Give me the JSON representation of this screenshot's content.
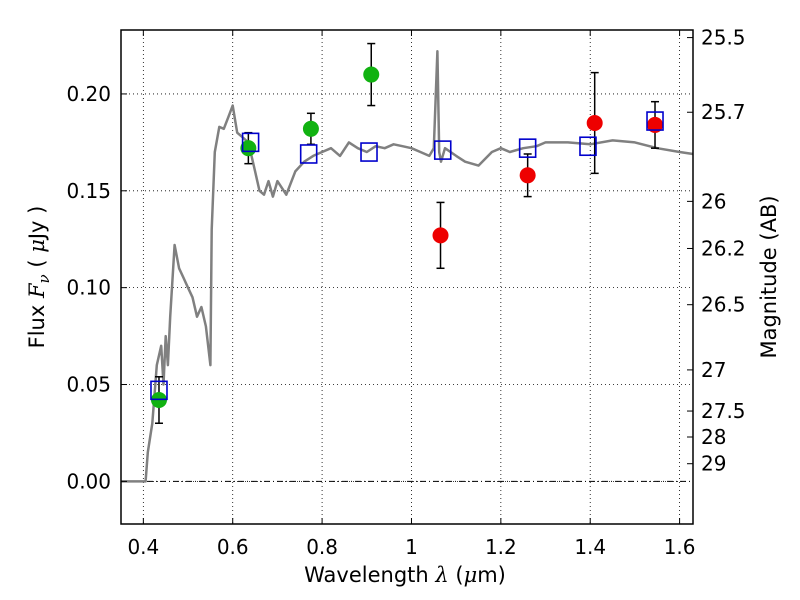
{
  "chart_data": {
    "type": "scatter",
    "title": "",
    "xlabel": "Wavelength  λ (μm)",
    "ylabel": "Flux  F_ν  ( μJy )",
    "y2label": "Magnitude (AB)",
    "xlim": [
      0.35,
      1.63
    ],
    "ylim": [
      -0.022,
      0.233
    ],
    "x_ticks": [
      0.4,
      0.6,
      0.8,
      1.0,
      1.2,
      1.4,
      1.6
    ],
    "x_tick_labels": [
      "0.4",
      "0.6",
      "0.8",
      "1",
      "1.2",
      "1.4",
      "1.6"
    ],
    "y_ticks": [
      0.0,
      0.05,
      0.1,
      0.15,
      0.2
    ],
    "y_tick_labels": [
      "0.00",
      "0.05",
      "0.10",
      "0.15",
      "0.20"
    ],
    "mag_ticks": [
      {
        "label": "25.5",
        "mag": 25.5
      },
      {
        "label": "25.7",
        "mag": 25.7
      },
      {
        "label": "26",
        "mag": 26.0
      },
      {
        "label": "26.2",
        "mag": 26.2
      },
      {
        "label": "26.5",
        "mag": 26.5
      },
      {
        "label": "27",
        "mag": 27.0
      },
      {
        "label": "27.5",
        "mag": 27.5
      },
      {
        "label": "28",
        "mag": 28.0
      },
      {
        "label": "29",
        "mag": 29.0
      }
    ],
    "grid": true,
    "colors": {
      "model": "#808080",
      "green": "#11b211",
      "red": "#ee0000",
      "square": "#0000cc",
      "errorbar": "#000000"
    },
    "series": [
      {
        "kind": "model-spectrum",
        "x": [
          0.35,
          0.405,
          0.41,
          0.42,
          0.43,
          0.44,
          0.445,
          0.45,
          0.455,
          0.46,
          0.47,
          0.48,
          0.49,
          0.5,
          0.51,
          0.52,
          0.53,
          0.54,
          0.55,
          0.553,
          0.56,
          0.57,
          0.58,
          0.59,
          0.6,
          0.61,
          0.62,
          0.63,
          0.64,
          0.65,
          0.66,
          0.67,
          0.68,
          0.69,
          0.7,
          0.72,
          0.74,
          0.76,
          0.78,
          0.8,
          0.82,
          0.84,
          0.86,
          0.88,
          0.9,
          0.92,
          0.94,
          0.96,
          0.98,
          1.0,
          1.02,
          1.04,
          1.05,
          1.058,
          1.062,
          1.066,
          1.075,
          1.1,
          1.12,
          1.15,
          1.18,
          1.2,
          1.22,
          1.25,
          1.28,
          1.3,
          1.35,
          1.4,
          1.45,
          1.5,
          1.55,
          1.6,
          1.63
        ],
        "y": [
          0.0,
          0.0,
          0.015,
          0.03,
          0.06,
          0.07,
          0.05,
          0.075,
          0.06,
          0.085,
          0.122,
          0.11,
          0.105,
          0.1,
          0.095,
          0.085,
          0.09,
          0.08,
          0.06,
          0.13,
          0.17,
          0.183,
          0.182,
          0.188,
          0.194,
          0.18,
          0.178,
          0.176,
          0.17,
          0.16,
          0.15,
          0.148,
          0.155,
          0.147,
          0.155,
          0.148,
          0.16,
          0.165,
          0.168,
          0.17,
          0.172,
          0.168,
          0.175,
          0.172,
          0.17,
          0.173,
          0.172,
          0.174,
          0.173,
          0.172,
          0.17,
          0.168,
          0.172,
          0.222,
          0.17,
          0.165,
          0.172,
          0.168,
          0.165,
          0.163,
          0.17,
          0.172,
          0.17,
          0.172,
          0.173,
          0.175,
          0.175,
          0.174,
          0.176,
          0.175,
          0.172,
          0.17,
          0.169
        ]
      },
      {
        "kind": "green-points",
        "x": [
          0.435,
          0.635,
          0.775,
          0.91
        ],
        "y": [
          0.042,
          0.172,
          0.182,
          0.21
        ],
        "yerr": [
          0.012,
          0.008,
          0.008,
          0.016
        ]
      },
      {
        "kind": "red-points",
        "x": [
          1.065,
          1.26,
          1.41,
          1.545
        ],
        "y": [
          0.127,
          0.158,
          0.185,
          0.184
        ],
        "yerr": [
          0.017,
          0.011,
          0.026,
          0.012
        ]
      },
      {
        "kind": "model-squares",
        "x": [
          0.435,
          0.64,
          0.77,
          0.905,
          1.07,
          1.26,
          1.395,
          1.545
        ],
        "y": [
          0.047,
          0.175,
          0.169,
          0.17,
          0.171,
          0.172,
          0.173,
          0.186
        ]
      }
    ]
  }
}
